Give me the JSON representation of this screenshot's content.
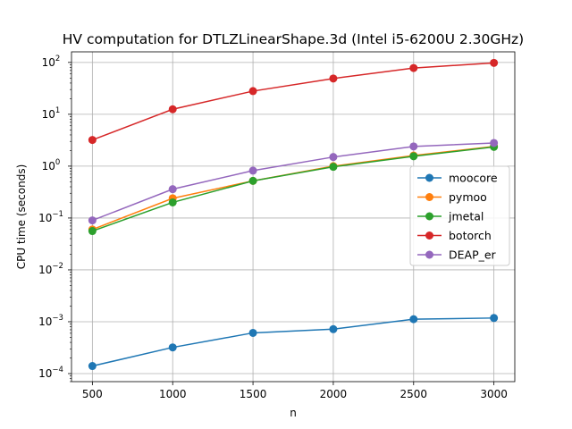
{
  "chart_data": {
    "type": "line",
    "title": "HV computation for DTLZLinearShape.3d (Intel i5-6200U 2.30GHz)",
    "xlabel": "n",
    "ylabel": "CPU time (seconds)",
    "x": [
      500,
      1000,
      1500,
      2000,
      2500,
      3000
    ],
    "xlim": [
      370,
      3130
    ],
    "xticks": [
      500,
      1000,
      1500,
      2000,
      2500,
      3000
    ],
    "yscale": "log",
    "ylim": [
      7e-05,
      160
    ],
    "yticks": [
      {
        "value": 0.0001,
        "base": "10",
        "exp": "−4"
      },
      {
        "value": 0.001,
        "base": "10",
        "exp": "−3"
      },
      {
        "value": 0.01,
        "base": "10",
        "exp": "−2"
      },
      {
        "value": 0.1,
        "base": "10",
        "exp": "−1"
      },
      {
        "value": 1,
        "base": "10",
        "exp": "0"
      },
      {
        "value": 10,
        "base": "10",
        "exp": "1"
      },
      {
        "value": 100,
        "base": "10",
        "exp": "2"
      }
    ],
    "grid": true,
    "legend_position": "center-right",
    "series": [
      {
        "name": "moocore",
        "color": "#1f77b4",
        "values": [
          0.00014,
          0.00032,
          0.00061,
          0.00072,
          0.00112,
          0.00118
        ]
      },
      {
        "name": "pymoo",
        "color": "#ff7f0e",
        "values": [
          0.06,
          0.24,
          0.52,
          1.0,
          1.6,
          2.4
        ]
      },
      {
        "name": "jmetal",
        "color": "#2ca02c",
        "values": [
          0.056,
          0.2,
          0.52,
          0.97,
          1.55,
          2.35
        ]
      },
      {
        "name": "botorch",
        "color": "#d62728",
        "values": [
          3.2,
          12.5,
          28,
          49,
          78,
          98
        ]
      },
      {
        "name": "DEAP_er",
        "color": "#9467bd",
        "values": [
          0.09,
          0.36,
          0.82,
          1.5,
          2.4,
          2.8
        ]
      }
    ]
  }
}
